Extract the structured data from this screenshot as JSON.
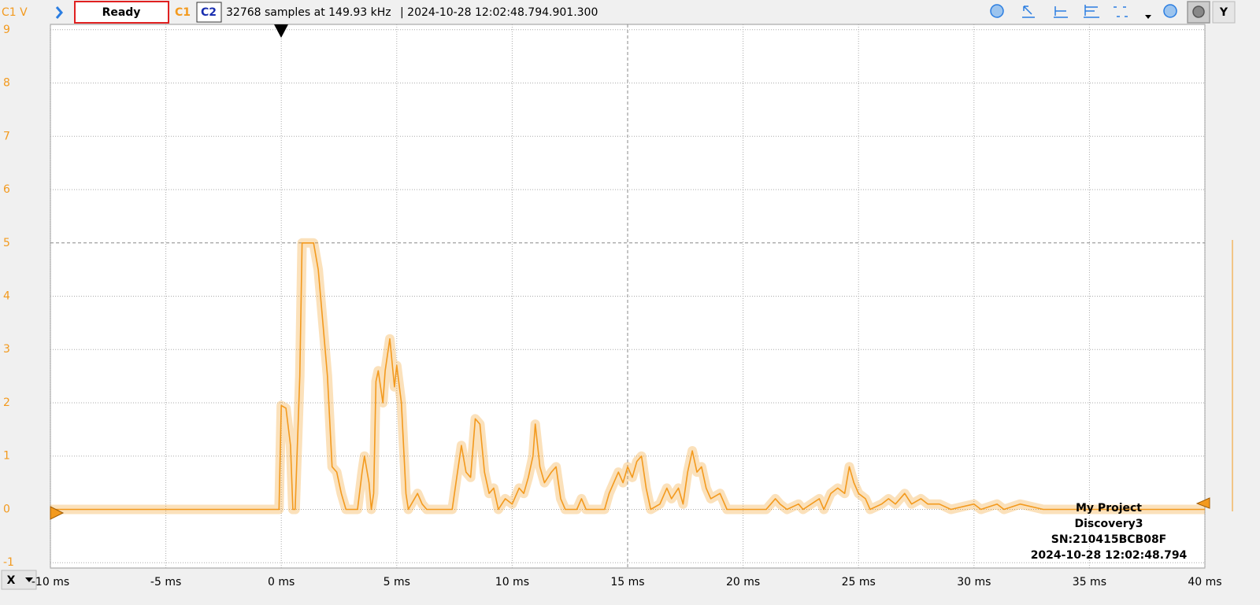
{
  "toolbar": {
    "channel_axis": "C1 V",
    "status": "Ready",
    "ch1": "C1",
    "ch2": "C2",
    "samples": "32768 samples at 149.93 kHz",
    "timestamp": "| 2024-10-28 12:02:48.794.901.300",
    "y_button": "Y",
    "x_button": "X"
  },
  "info": {
    "project": "My Project",
    "device": "Discovery3",
    "serial": "SN:210415BCB08F",
    "time": "2024-10-28 12:02:48.794"
  },
  "chart_data": {
    "type": "line",
    "color": "#f39a1e",
    "grid": true,
    "xlim": [
      -10,
      40
    ],
    "ylim": [
      -1.1,
      9.1
    ],
    "xticks": [
      {
        "value": -10,
        "label": "-10 ms"
      },
      {
        "value": -5,
        "label": "-5 ms"
      },
      {
        "value": 0,
        "label": "0 ms"
      },
      {
        "value": 5,
        "label": "5 ms"
      },
      {
        "value": 10,
        "label": "10 ms"
      },
      {
        "value": 15,
        "label": "15 ms"
      },
      {
        "value": 20,
        "label": "20 ms"
      },
      {
        "value": 25,
        "label": "25 ms"
      },
      {
        "value": 30,
        "label": "30 ms"
      },
      {
        "value": 35,
        "label": "35 ms"
      },
      {
        "value": 40,
        "label": "40 ms"
      }
    ],
    "yticks": [
      9,
      8,
      7,
      6,
      5,
      4,
      3,
      2,
      1,
      0,
      -1
    ],
    "x": [
      -10,
      -0.1,
      0,
      0.2,
      0.4,
      0.5,
      0.6,
      0.8,
      0.9,
      1.4,
      1.6,
      1.8,
      2.0,
      2.2,
      2.4,
      2.6,
      2.8,
      3.3,
      3.5,
      3.6,
      3.8,
      3.9,
      4.0,
      4.1,
      4.2,
      4.4,
      4.5,
      4.7,
      4.9,
      5.0,
      5.2,
      5.4,
      5.5,
      5.9,
      6.1,
      6.3,
      7.4,
      7.6,
      7.8,
      8.0,
      8.2,
      8.4,
      8.6,
      8.8,
      9.0,
      9.2,
      9.4,
      9.7,
      10.0,
      10.3,
      10.5,
      10.7,
      10.9,
      11.0,
      11.2,
      11.4,
      11.7,
      11.9,
      12.1,
      12.3,
      12.8,
      13.0,
      13.2,
      14.0,
      14.2,
      14.4,
      14.6,
      14.8,
      15.0,
      15.2,
      15.4,
      15.6,
      15.8,
      16.0,
      16.4,
      16.7,
      16.9,
      17.2,
      17.4,
      17.6,
      17.8,
      18.0,
      18.2,
      18.4,
      18.6,
      19.0,
      19.3,
      20.5,
      21.0,
      21.2,
      21.4,
      21.6,
      21.9,
      22.4,
      22.6,
      23.3,
      23.5,
      23.8,
      24.1,
      24.4,
      24.6,
      24.8,
      25.0,
      25.3,
      25.5,
      26.0,
      26.3,
      26.6,
      27.0,
      27.3,
      27.7,
      28.0,
      28.5,
      29.0,
      30.0,
      30.3,
      31.0,
      31.3,
      32.0,
      33.0,
      35.0,
      40.0
    ],
    "values": [
      0,
      0,
      1.95,
      1.9,
      1.2,
      0,
      0,
      2.5,
      5.0,
      5.0,
      4.5,
      3.5,
      2.5,
      0.8,
      0.7,
      0.3,
      0,
      0,
      0.7,
      1.0,
      0.5,
      0,
      0.3,
      2.4,
      2.6,
      2.0,
      2.6,
      3.2,
      2.3,
      2.7,
      2.0,
      0.3,
      0,
      0.3,
      0.1,
      0,
      0,
      0.6,
      1.2,
      0.7,
      0.6,
      1.7,
      1.6,
      0.7,
      0.3,
      0.4,
      0,
      0.2,
      0.1,
      0.4,
      0.3,
      0.6,
      1.0,
      1.6,
      0.8,
      0.5,
      0.7,
      0.8,
      0.2,
      0,
      0,
      0.2,
      0,
      0,
      0.3,
      0.5,
      0.7,
      0.5,
      0.8,
      0.6,
      0.9,
      1.0,
      0.4,
      0,
      0.1,
      0.4,
      0.2,
      0.4,
      0.1,
      0.7,
      1.1,
      0.7,
      0.8,
      0.4,
      0.2,
      0.3,
      0,
      0,
      0,
      0.1,
      0.2,
      0.1,
      0,
      0.1,
      0,
      0.2,
      0,
      0.3,
      0.4,
      0.3,
      0.8,
      0.5,
      0.3,
      0.2,
      0,
      0.1,
      0.2,
      0.1,
      0.3,
      0.1,
      0.2,
      0.1,
      0.1,
      0,
      0.1,
      0,
      0.1,
      0,
      0.1,
      0,
      0,
      0
    ]
  }
}
